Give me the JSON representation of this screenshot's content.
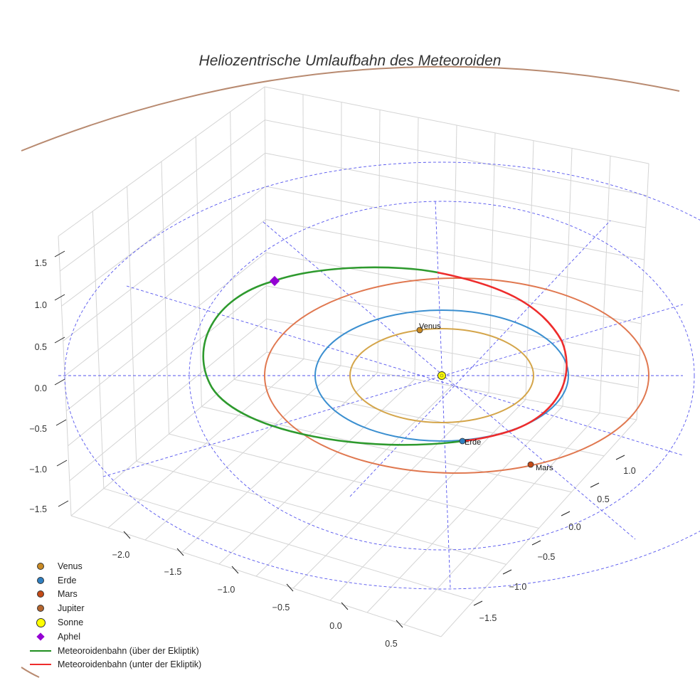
{
  "chart_data": {
    "type": "3d-line-scatter",
    "title": "Heliozentrische Umlaufbahn des Meteoroiden",
    "axes": {
      "x": {
        "ticks": [
          -2.0,
          -1.5,
          -1.0,
          -0.5,
          0.0,
          0.5
        ],
        "labels": [
          "−2.0",
          "−1.5",
          "−1.0",
          "−0.5",
          "0.0",
          "0.5"
        ]
      },
      "y": {
        "ticks": [
          -1.5,
          -1.0,
          -0.5,
          0.0,
          0.5,
          1.0
        ],
        "labels": [
          "−1.5",
          "−1.0",
          "−0.5",
          "0.0",
          "0.5",
          "1.0"
        ]
      },
      "z": {
        "ticks": [
          1.5,
          1.0,
          0.5,
          0.0,
          -0.5,
          -1.0,
          -1.5
        ],
        "labels": [
          "1.5",
          "1.0",
          "0.5",
          "0.0",
          "−0.5",
          "−1.0",
          "−1.5"
        ]
      },
      "grid": true
    },
    "planets": [
      {
        "name": "Venus",
        "color": "#c98a24",
        "orbit_color": "#d4a54a",
        "orbit_radius_au": 0.72,
        "label": "Venus"
      },
      {
        "name": "Erde",
        "color": "#2f7fc1",
        "orbit_color": "#3b8fd0",
        "orbit_radius_au": 1.0,
        "label": "Erde"
      },
      {
        "name": "Mars",
        "color": "#c44a16",
        "orbit_color": "#e07850",
        "orbit_radius_au": 1.52,
        "label": "Mars"
      },
      {
        "name": "Jupiter",
        "color": "#b5652e",
        "orbit_color": "#b88a70",
        "orbit_radius_au": 5.2
      }
    ],
    "sun": {
      "name": "Sonne",
      "color": "#ffff00"
    },
    "aphel": {
      "name": "Aphel",
      "color": "#9400d3"
    },
    "meteoroid_orbit": {
      "above": {
        "name": "Meteoroidenbahn (über der Ekliptik)",
        "color": "#2e9a2e"
      },
      "below": {
        "name": "Meteoroidenbahn (unter der Ekliptik)",
        "color": "#ee2c2c"
      }
    },
    "ecliptic_reference_color": "#5555ee"
  },
  "legend": [
    {
      "label": "Venus",
      "kind": "dot",
      "color": "#c98a24"
    },
    {
      "label": "Erde",
      "kind": "dot",
      "color": "#2f7fc1"
    },
    {
      "label": "Mars",
      "kind": "dot",
      "color": "#c44a16"
    },
    {
      "label": "Jupiter",
      "kind": "dot",
      "color": "#b5652e"
    },
    {
      "label": "Sonne",
      "kind": "sun",
      "color": "#ffff00"
    },
    {
      "label": "Aphel",
      "kind": "diamond",
      "color": "#9400d3"
    },
    {
      "label": "Meteoroidenbahn (über der Ekliptik)",
      "kind": "line",
      "color": "#1f8f1f"
    },
    {
      "label": "Meteoroidenbahn (unter der Ekliptik)",
      "kind": "line",
      "color": "#ee2c2c"
    }
  ]
}
